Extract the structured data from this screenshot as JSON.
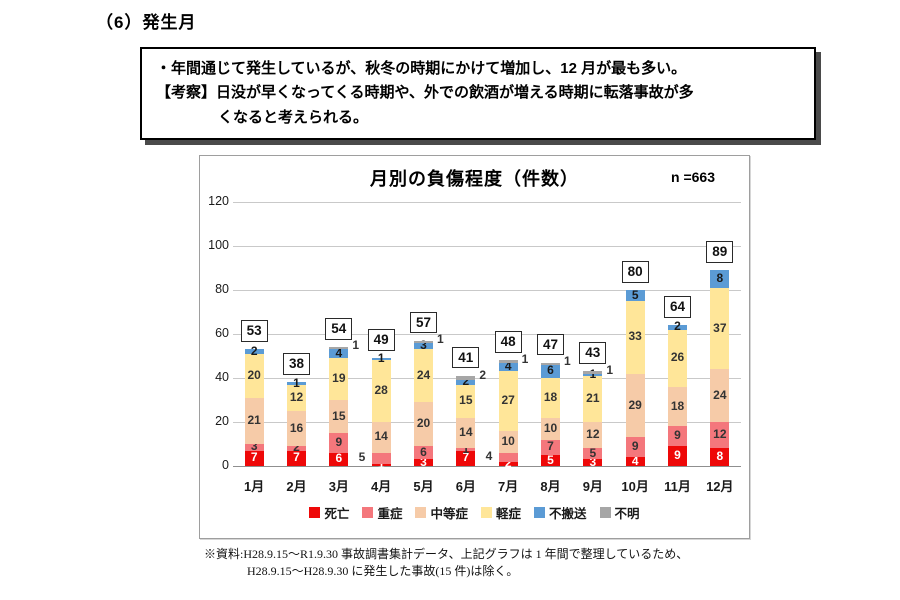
{
  "page": {
    "heading": "（6）発生月",
    "callout": {
      "line1": "・年間通じて発生しているが、秋冬の時期にかけて増加し、12 月が最も多い。",
      "line2": "【考察】日没が早くなってくる時期や、外での飲酒が増える時期に転落事故が多",
      "line3": "くなると考えられる。"
    },
    "footnote_line1": "※資料:H28.9.15～R1.9.30 事故調書集計データ、上記グラフは 1 年間で整理しているため、",
    "footnote_line2": "H28.9.15～H28.9.30 に発生した事故(15 件)は除く。"
  },
  "chart_data": {
    "type": "bar",
    "stacked": true,
    "title": "月別の負傷程度（件数）",
    "n_label": "n =663",
    "categories": [
      "1月",
      "2月",
      "3月",
      "4月",
      "5月",
      "6月",
      "7月",
      "8月",
      "9月",
      "10月",
      "11月",
      "12月"
    ],
    "series": [
      {
        "name": "死亡",
        "color": "#EE0808",
        "label_color": "#ffffff",
        "values": [
          7,
          7,
          6,
          1,
          3,
          7,
          2,
          5,
          3,
          4,
          9,
          8
        ]
      },
      {
        "name": "重症",
        "color": "#F4777C",
        "label_color": "#333333",
        "values": [
          3,
          2,
          9,
          5,
          6,
          1,
          4,
          7,
          5,
          9,
          9,
          12
        ]
      },
      {
        "name": "中等症",
        "color": "#F6CBA8",
        "label_color": "#333333",
        "values": [
          21,
          16,
          15,
          14,
          20,
          14,
          10,
          10,
          12,
          29,
          18,
          24
        ]
      },
      {
        "name": "軽症",
        "color": "#FFE699",
        "label_color": "#333333",
        "values": [
          20,
          12,
          19,
          28,
          24,
          15,
          27,
          18,
          21,
          33,
          26,
          37
        ]
      },
      {
        "name": "不搬送",
        "color": "#5B9BD5",
        "label_color": "#1a1a1a",
        "values": [
          2,
          1,
          4,
          1,
          3,
          2,
          4,
          6,
          1,
          5,
          2,
          8
        ]
      },
      {
        "name": "不明",
        "color": "#A6A6A6",
        "label_color": "#333333",
        "values": [
          0,
          0,
          1,
          0,
          1,
          2,
          1,
          1,
          1,
          0,
          0,
          0
        ]
      }
    ],
    "totals": [
      53,
      38,
      54,
      49,
      57,
      41,
      48,
      47,
      43,
      80,
      64,
      89
    ],
    "ylim": [
      0,
      120
    ],
    "yticks": [
      0,
      20,
      40,
      60,
      80,
      100,
      120
    ],
    "grid": true,
    "legend_position": "bottom",
    "label_overrides": [
      {
        "category": "4月",
        "series": "重症",
        "placement": "outside-left"
      },
      {
        "category": "7月",
        "series": "重症",
        "placement": "outside-left"
      }
    ],
    "outside_right_series": "不明"
  }
}
